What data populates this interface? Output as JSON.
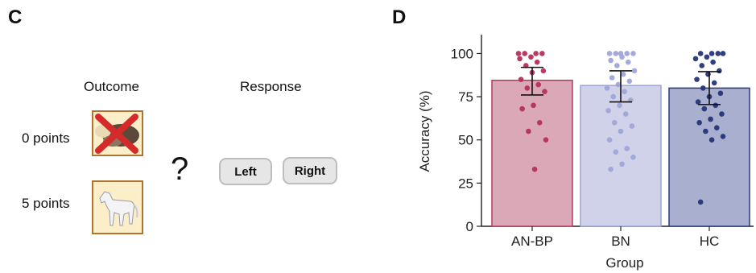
{
  "panel_c": {
    "label": "C",
    "outcome_header": "Outcome",
    "response_header": "Response",
    "outcomes": [
      {
        "label": "0 points",
        "icon": "crossed-out-animal-icon"
      },
      {
        "label": "5 points",
        "icon": "horse-icon"
      }
    ],
    "question_mark": "?",
    "buttons": [
      "Left",
      "Right"
    ],
    "colors": {
      "card_fill": "#fbeec9",
      "card_border": "#b0742f",
      "cross": "#d42a2a"
    }
  },
  "panel_d": {
    "label": "D"
  },
  "chart_data": {
    "type": "bar",
    "categories": [
      "AN-BP",
      "BN",
      "HC"
    ],
    "values": [
      84.5,
      81.5,
      80
    ],
    "error": [
      {
        "low": 76,
        "high": 92
      },
      {
        "low": 72,
        "high": 90
      },
      {
        "low": 70.5,
        "high": 89.5
      }
    ],
    "points": [
      [
        100,
        100,
        100,
        100,
        98,
        97,
        95,
        93,
        90,
        89,
        85,
        82,
        80,
        78,
        70,
        68,
        60,
        55,
        50,
        33
      ],
      [
        100,
        100,
        100,
        100,
        100,
        98,
        96,
        95,
        93,
        90,
        88,
        86,
        84,
        82,
        80,
        78,
        75,
        73,
        70,
        67,
        65,
        60,
        58,
        55,
        50,
        45,
        43,
        40,
        36,
        33
      ],
      [
        100,
        100,
        100,
        100,
        98,
        97,
        95,
        93,
        90,
        88,
        85,
        83,
        80,
        77,
        75,
        72,
        70,
        68,
        65,
        62,
        60,
        57,
        55,
        52,
        50,
        14
      ]
    ],
    "bar_colors": [
      "#dba8b7",
      "#cfd2e9",
      "#a9b0cf"
    ],
    "edge_colors": [
      "#b53a63",
      "#9da4d2",
      "#2a3a7e"
    ],
    "point_colors": [
      "#b5305a",
      "#9fa6d8",
      "#263478"
    ],
    "xlabel": "Group",
    "ylabel": "Accuracy (%)",
    "ylim": [
      0,
      110
    ],
    "yticks": [
      "0",
      "25",
      "50",
      "75",
      "100"
    ],
    "grid": false
  }
}
